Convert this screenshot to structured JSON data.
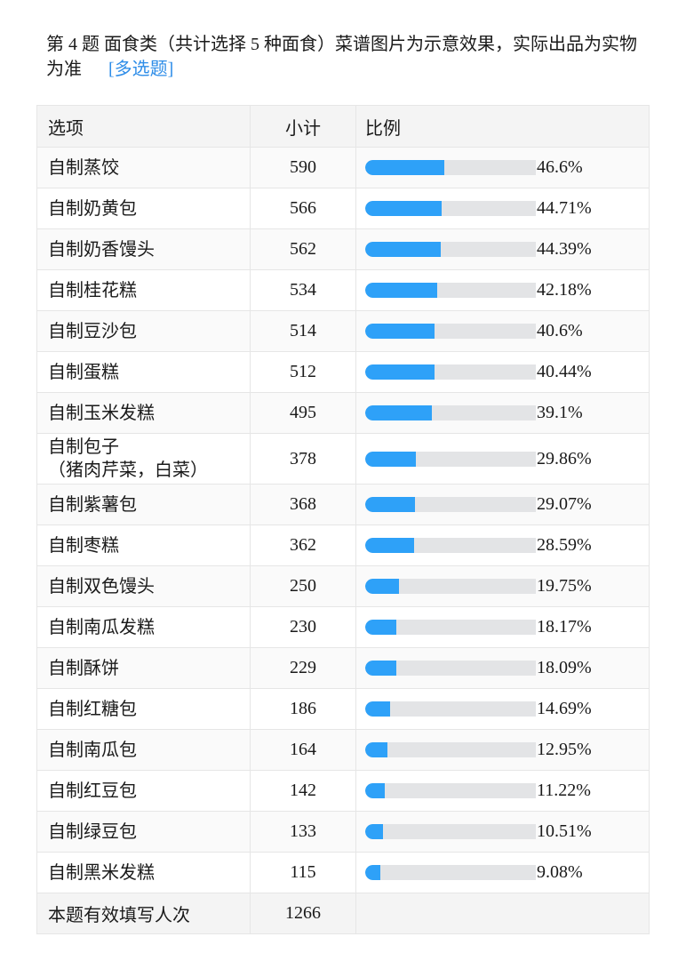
{
  "question": {
    "title": "第 4 题   面食类（共计选择 5 种面食）菜谱图片为示意效果，实际出品为实物为准",
    "type_tag": "[多选题]"
  },
  "table": {
    "headers": {
      "option": "选项",
      "count": "小计",
      "ratio": "比例"
    },
    "rows": [
      {
        "option": "自制蒸饺",
        "count": "590",
        "pct": "46.6%",
        "value": 46.6
      },
      {
        "option": "自制奶黄包",
        "count": "566",
        "pct": "44.71%",
        "value": 44.71
      },
      {
        "option": "自制奶香馒头",
        "count": "562",
        "pct": "44.39%",
        "value": 44.39
      },
      {
        "option": "自制桂花糕",
        "count": "534",
        "pct": "42.18%",
        "value": 42.18
      },
      {
        "option": "自制豆沙包",
        "count": "514",
        "pct": "40.6%",
        "value": 40.6
      },
      {
        "option": "自制蛋糕",
        "count": "512",
        "pct": "40.44%",
        "value": 40.44
      },
      {
        "option": "自制玉米发糕",
        "count": "495",
        "pct": "39.1%",
        "value": 39.1
      },
      {
        "option": "自制包子",
        "option_sub": "（猪肉芹菜，白菜）",
        "count": "378",
        "pct": "29.86%",
        "value": 29.86
      },
      {
        "option": "自制紫薯包",
        "count": "368",
        "pct": "29.07%",
        "value": 29.07
      },
      {
        "option": "自制枣糕",
        "count": "362",
        "pct": "28.59%",
        "value": 28.59
      },
      {
        "option": "自制双色馒头",
        "count": "250",
        "pct": "19.75%",
        "value": 19.75
      },
      {
        "option": "自制南瓜发糕",
        "count": "230",
        "pct": "18.17%",
        "value": 18.17
      },
      {
        "option": "自制酥饼",
        "count": "229",
        "pct": "18.09%",
        "value": 18.09
      },
      {
        "option": "自制红糖包",
        "count": "186",
        "pct": "14.69%",
        "value": 14.69
      },
      {
        "option": "自制南瓜包",
        "count": "164",
        "pct": "12.95%",
        "value": 12.95
      },
      {
        "option": "自制红豆包",
        "count": "142",
        "pct": "11.22%",
        "value": 11.22
      },
      {
        "option": "自制绿豆包",
        "count": "133",
        "pct": "10.51%",
        "value": 10.51
      },
      {
        "option": "自制黑米发糕",
        "count": "115",
        "pct": "9.08%",
        "value": 9.08
      }
    ],
    "footer": {
      "label": "本题有效填写人次",
      "count": "1266"
    }
  },
  "colors": {
    "bar_fill": "#2ea1f8",
    "bar_track": "#e3e4e6",
    "tag": "#2e8de8",
    "header_bg": "#f4f4f4"
  },
  "chart_data": {
    "type": "bar",
    "title": "第 4 题 面食类（共计选择 5 种面食）菜谱图片为示意效果，实际出品为实物为准 [多选题]",
    "xlabel": "选项",
    "ylabel": "比例",
    "categories": [
      "自制蒸饺",
      "自制奶黄包",
      "自制奶香馒头",
      "自制桂花糕",
      "自制豆沙包",
      "自制蛋糕",
      "自制玉米发糕",
      "自制包子（猪肉芹菜，白菜）",
      "自制紫薯包",
      "自制枣糕",
      "自制双色馒头",
      "自制南瓜发糕",
      "自制酥饼",
      "自制红糖包",
      "自制南瓜包",
      "自制红豆包",
      "自制绿豆包",
      "自制黑米发糕"
    ],
    "series": [
      {
        "name": "小计",
        "values": [
          590,
          566,
          562,
          534,
          514,
          512,
          495,
          378,
          368,
          362,
          250,
          230,
          229,
          186,
          164,
          142,
          133,
          115
        ]
      },
      {
        "name": "比例(%)",
        "values": [
          46.6,
          44.71,
          44.39,
          42.18,
          40.6,
          40.44,
          39.1,
          29.86,
          29.07,
          28.59,
          19.75,
          18.17,
          18.09,
          14.69,
          12.95,
          11.22,
          10.51,
          9.08
        ]
      }
    ],
    "total_respondents": 1266,
    "ylim": [
      0,
      100
    ]
  }
}
